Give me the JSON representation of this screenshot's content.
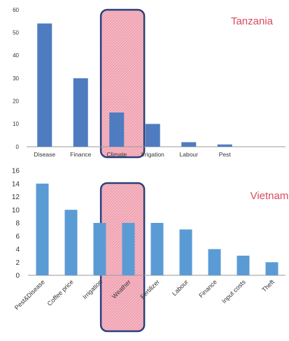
{
  "colors": {
    "tanzania_bar": "#4f7cc0",
    "vietnam_bar": "#5b9bd5",
    "axis": "#9a9a9a",
    "tick_text": "#333333",
    "country_label": "#d94a5f",
    "highlight_fill": "#f4aab8",
    "highlight_stroke": "#2a3f7a"
  },
  "chart_data": [
    {
      "type": "bar",
      "title": "Tanzania",
      "categories": [
        "Disease",
        "Finance",
        "Climate",
        "Irrigation",
        "Labour",
        "Pest"
      ],
      "values": [
        54,
        30,
        15,
        10,
        2,
        1
      ],
      "ylim": [
        0,
        60
      ],
      "yticks": [
        0,
        10,
        20,
        30,
        40,
        50,
        60
      ],
      "grid": false,
      "highlighted_category": "Climate"
    },
    {
      "type": "bar",
      "title": "Vietnam",
      "categories": [
        "Pest&Disease",
        "Coffee price",
        "Irrigation",
        "Weather",
        "Fertilizer",
        "Labour",
        "Finance",
        "Input costs",
        "Theft"
      ],
      "values": [
        14,
        10,
        8,
        8,
        8,
        7,
        4,
        3,
        2
      ],
      "ylim": [
        0,
        16
      ],
      "yticks": [
        0,
        2,
        4,
        6,
        8,
        10,
        12,
        14,
        16
      ],
      "grid": false,
      "highlighted_category": "Weather"
    }
  ]
}
